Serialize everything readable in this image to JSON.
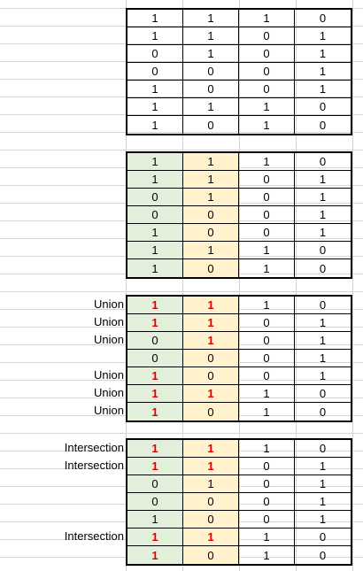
{
  "colors": {
    "green_fill": "#e2efda",
    "yellow_fill": "#fff2cc",
    "highlight_text": "#e00000",
    "gridline": "#d4d4d4"
  },
  "blocks": [
    {
      "rows": [
        {
          "label": "",
          "cells": [
            "1",
            "1",
            "1",
            "0"
          ],
          "red": [
            false,
            false
          ]
        },
        {
          "label": "",
          "cells": [
            "1",
            "1",
            "0",
            "1"
          ],
          "red": [
            false,
            false
          ]
        },
        {
          "label": "",
          "cells": [
            "0",
            "1",
            "0",
            "1"
          ],
          "red": [
            false,
            false
          ]
        },
        {
          "label": "",
          "cells": [
            "0",
            "0",
            "0",
            "1"
          ],
          "red": [
            false,
            false
          ]
        },
        {
          "label": "",
          "cells": [
            "1",
            "0",
            "0",
            "1"
          ],
          "red": [
            false,
            false
          ]
        },
        {
          "label": "",
          "cells": [
            "1",
            "1",
            "1",
            "0"
          ],
          "red": [
            false,
            false
          ]
        },
        {
          "label": "",
          "cells": [
            "1",
            "0",
            "1",
            "0"
          ],
          "red": [
            false,
            false
          ]
        }
      ]
    },
    {
      "rows": [
        {
          "label": "",
          "cells": [
            "1",
            "1",
            "1",
            "0"
          ],
          "red": [
            false,
            false
          ]
        },
        {
          "label": "",
          "cells": [
            "1",
            "1",
            "0",
            "1"
          ],
          "red": [
            false,
            false
          ]
        },
        {
          "label": "",
          "cells": [
            "0",
            "1",
            "0",
            "1"
          ],
          "red": [
            false,
            false
          ]
        },
        {
          "label": "",
          "cells": [
            "0",
            "0",
            "0",
            "1"
          ],
          "red": [
            false,
            false
          ]
        },
        {
          "label": "",
          "cells": [
            "1",
            "0",
            "0",
            "1"
          ],
          "red": [
            false,
            false
          ]
        },
        {
          "label": "",
          "cells": [
            "1",
            "1",
            "1",
            "0"
          ],
          "red": [
            false,
            false
          ]
        },
        {
          "label": "",
          "cells": [
            "1",
            "0",
            "1",
            "0"
          ],
          "red": [
            false,
            false
          ]
        }
      ]
    },
    {
      "rows": [
        {
          "label": "Union",
          "cells": [
            "1",
            "1",
            "1",
            "0"
          ],
          "red": [
            true,
            true
          ]
        },
        {
          "label": "Union",
          "cells": [
            "1",
            "1",
            "0",
            "1"
          ],
          "red": [
            true,
            true
          ]
        },
        {
          "label": "Union",
          "cells": [
            "0",
            "1",
            "0",
            "1"
          ],
          "red": [
            false,
            true
          ]
        },
        {
          "label": "",
          "cells": [
            "0",
            "0",
            "0",
            "1"
          ],
          "red": [
            false,
            false
          ]
        },
        {
          "label": "Union",
          "cells": [
            "1",
            "0",
            "0",
            "1"
          ],
          "red": [
            true,
            false
          ]
        },
        {
          "label": "Union",
          "cells": [
            "1",
            "1",
            "1",
            "0"
          ],
          "red": [
            true,
            true
          ]
        },
        {
          "label": "Union",
          "cells": [
            "1",
            "0",
            "1",
            "0"
          ],
          "red": [
            true,
            false
          ]
        }
      ]
    },
    {
      "rows": [
        {
          "label": "Intersection",
          "cells": [
            "1",
            "1",
            "1",
            "0"
          ],
          "red": [
            true,
            true
          ]
        },
        {
          "label": "Intersection",
          "cells": [
            "1",
            "1",
            "0",
            "1"
          ],
          "red": [
            true,
            true
          ]
        },
        {
          "label": "",
          "cells": [
            "0",
            "1",
            "0",
            "1"
          ],
          "red": [
            false,
            false
          ]
        },
        {
          "label": "",
          "cells": [
            "0",
            "0",
            "0",
            "1"
          ],
          "red": [
            false,
            false
          ]
        },
        {
          "label": "",
          "cells": [
            "1",
            "0",
            "0",
            "1"
          ],
          "red": [
            false,
            false
          ]
        },
        {
          "label": "Intersection",
          "cells": [
            "1",
            "1",
            "1",
            "0"
          ],
          "red": [
            true,
            true
          ]
        },
        {
          "label": "",
          "cells": [
            "1",
            "0",
            "1",
            "0"
          ],
          "red": [
            true,
            false
          ]
        }
      ]
    }
  ]
}
